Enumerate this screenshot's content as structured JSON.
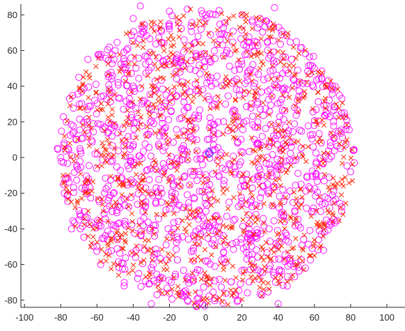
{
  "chart_data": {
    "type": "scatter",
    "title": "",
    "xlabel": "",
    "ylabel": "",
    "xlim": [
      -102,
      110
    ],
    "ylim": [
      -84,
      86
    ],
    "xticks": [
      -100,
      -80,
      -60,
      -40,
      -20,
      0,
      20,
      40,
      60,
      80,
      100
    ],
    "yticks": [
      -80,
      -60,
      -40,
      -20,
      0,
      20,
      40,
      60,
      80
    ],
    "xtick_labels": [
      "-100",
      "-80",
      "-60",
      "-40",
      "-20",
      "0",
      "20",
      "40",
      "60",
      "80",
      "100"
    ],
    "ytick_labels": [
      "-80",
      "-60",
      "-40",
      "-20",
      "0",
      "20",
      "40",
      "60",
      "80"
    ],
    "grid": false,
    "legend": "none",
    "cloud": {
      "center": [
        0,
        0
      ],
      "radius_x": 82,
      "radius_y": 84,
      "random_seed": 7
    },
    "series": [
      {
        "marker": "circle",
        "color": "#ff00ff",
        "count": 1300,
        "points": [
          [
            -77,
            20
          ],
          [
            -78,
            -20
          ],
          [
            -76,
            5
          ],
          [
            -74,
            -40
          ],
          [
            -70,
            45
          ],
          [
            -65,
            55
          ],
          [
            -60,
            -50
          ],
          [
            -50,
            60
          ],
          [
            -40,
            78
          ],
          [
            -36,
            85
          ],
          [
            -30,
            -82
          ],
          [
            -20,
            82
          ],
          [
            -10,
            -80
          ],
          [
            0,
            80
          ],
          [
            5,
            -79
          ],
          [
            20,
            80
          ],
          [
            30,
            78
          ],
          [
            38,
            84
          ],
          [
            40,
            -82
          ],
          [
            50,
            65
          ],
          [
            60,
            50
          ],
          [
            70,
            40
          ],
          [
            78,
            18
          ],
          [
            80,
            -8
          ],
          [
            82,
            -3
          ],
          [
            75,
            -30
          ],
          [
            65,
            -52
          ],
          [
            55,
            -62
          ],
          [
            45,
            -72
          ],
          [
            -45,
            -72
          ],
          [
            -58,
            -60
          ],
          [
            -70,
            -35
          ],
          [
            -80,
            0
          ],
          [
            2,
            2
          ],
          [
            -5,
            10
          ],
          [
            10,
            -15
          ],
          [
            25,
            30
          ],
          [
            -30,
            -20
          ],
          [
            35,
            -40
          ],
          [
            -40,
            40
          ]
        ]
      },
      {
        "marker": "x",
        "color": "#ff2200",
        "count": 900,
        "points": [
          [
            -75,
            8
          ],
          [
            -72,
            -28
          ],
          [
            -66,
            48
          ],
          [
            -55,
            -58
          ],
          [
            -42,
            70
          ],
          [
            -30,
            76
          ],
          [
            -15,
            -78
          ],
          [
            -5,
            74
          ],
          [
            10,
            -76
          ],
          [
            22,
            76
          ],
          [
            35,
            72
          ],
          [
            45,
            68
          ],
          [
            55,
            60
          ],
          [
            62,
            48
          ],
          [
            72,
            30
          ],
          [
            78,
            10
          ],
          [
            76,
            -16
          ],
          [
            70,
            -36
          ],
          [
            60,
            -55
          ],
          [
            48,
            -66
          ],
          [
            32,
            -74
          ],
          [
            -24,
            -76
          ],
          [
            -48,
            -66
          ],
          [
            -63,
            -48
          ],
          [
            -76,
            -10
          ],
          [
            0,
            0
          ],
          [
            15,
            15
          ],
          [
            -15,
            -15
          ],
          [
            28,
            -28
          ],
          [
            -28,
            28
          ]
        ]
      },
      {
        "marker": "diamond",
        "color": "#1f3cff",
        "count": 1,
        "points": [
          [
            2,
            2
          ]
        ]
      }
    ]
  }
}
